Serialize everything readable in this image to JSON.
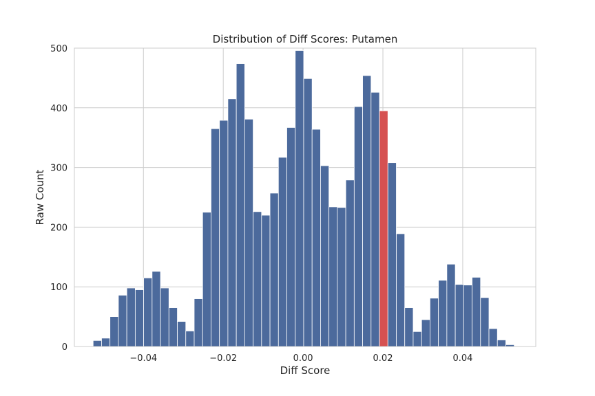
{
  "chart_data": {
    "type": "bar",
    "title": "Distribution of Diff Scores: Putamen",
    "xlabel": "Diff Score",
    "ylabel": "Raw Count",
    "xlim": [
      -0.0573,
      0.0583
    ],
    "ylim": [
      0,
      500
    ],
    "grid": true,
    "xticks": [
      -0.04,
      -0.02,
      0.0,
      0.02,
      0.04
    ],
    "xtick_labels": [
      "−0.04",
      "−0.02",
      "0.00",
      "0.02",
      "0.04"
    ],
    "yticks": [
      0,
      100,
      200,
      300,
      400,
      500
    ],
    "ytick_labels": [
      "0",
      "100",
      "200",
      "300",
      "400",
      "500"
    ],
    "bin_start": -0.0526,
    "bin_width": 0.00211,
    "values": [
      10,
      14,
      50,
      86,
      98,
      95,
      115,
      126,
      98,
      65,
      42,
      26,
      80,
      225,
      365,
      379,
      415,
      474,
      381,
      226,
      220,
      257,
      317,
      367,
      496,
      449,
      364,
      303,
      234,
      233,
      279,
      402,
      454,
      426,
      395,
      308,
      189,
      65,
      25,
      45,
      81,
      111,
      138,
      104,
      103,
      116,
      82,
      30,
      11,
      3
    ],
    "highlight_index": 34,
    "colors": {
      "bar": "#4c6a9c",
      "highlight": "#d65151",
      "grid": "#cccccc",
      "frame": "#cccccc",
      "text": "#262626"
    }
  }
}
